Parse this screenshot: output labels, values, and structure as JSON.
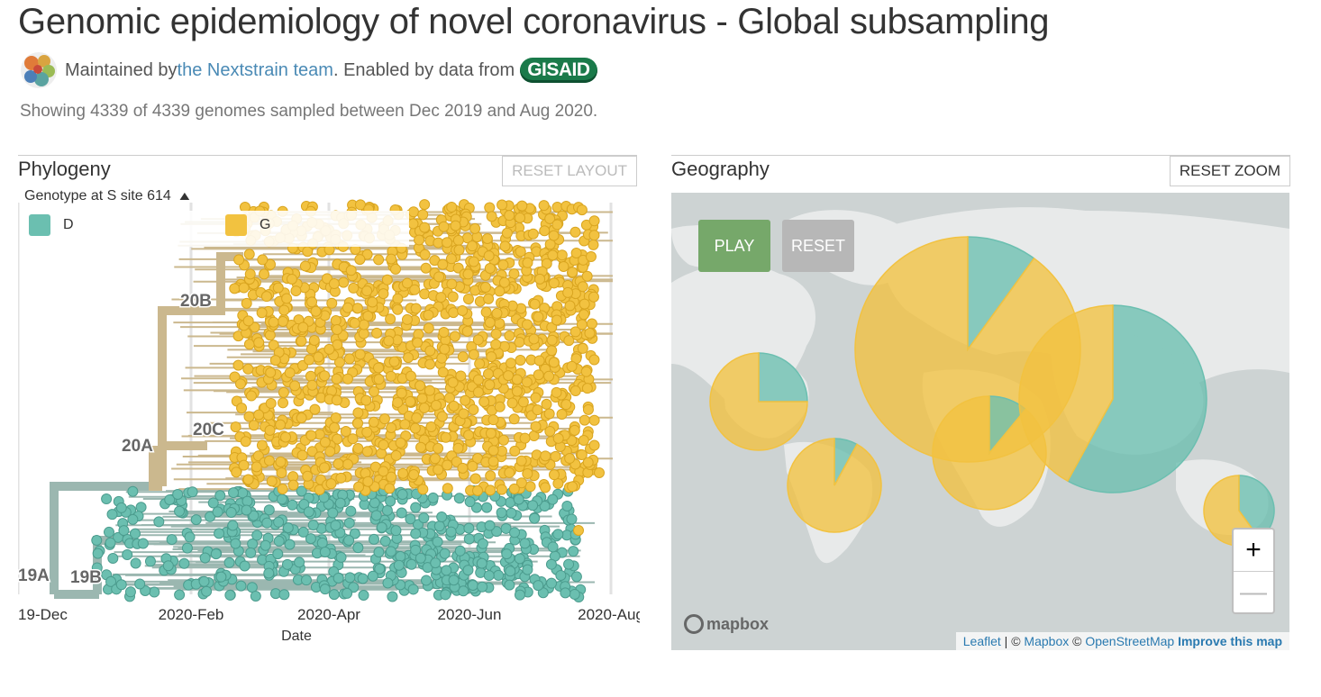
{
  "header": {
    "title": "Genomic epidemiology of novel coronavirus - Global subsampling",
    "maintained_prefix": "Maintained by ",
    "maintainer_link": "the Nextstrain team",
    "enabled_text": ". Enabled by data from ",
    "gisaid_logo": "GISAID",
    "summary": "Showing 4339 of 4339 genomes sampled between Dec 2019 and Aug 2020."
  },
  "phylogeny": {
    "title": "Phylogeny",
    "reset_button": "RESET LAYOUT",
    "legend_title": "Genotype at S site 614",
    "legend_toggle_icon": "chevron-up-icon",
    "legend": [
      {
        "label": "D",
        "color": "#6bbfb0"
      },
      {
        "label": "G",
        "color": "#f2c240"
      }
    ],
    "clade_labels": [
      "20B",
      "20C",
      "20A",
      "19A",
      "19B"
    ],
    "x_ticks": [
      "2019-Dec",
      "2020-Feb",
      "2020-Apr",
      "2020-Jun",
      "2020-Aug"
    ],
    "x_axis_label": "Date",
    "colors": {
      "D": "#6bbfb0",
      "G": "#f2c240",
      "branch_D": "#9bb7b0",
      "branch_G": "#cbb88e"
    }
  },
  "geography": {
    "title": "Geography",
    "reset_zoom_button": "RESET ZOOM",
    "play_button": "PLAY",
    "reset_button": "RESET",
    "play_color": "#76a86a",
    "reset_color": "#b7b7b7",
    "zoom_in": "+",
    "zoom_out": "—",
    "mapbox_logo": "mapbox",
    "attribution": {
      "leaflet": "Leaflet",
      "sep1": " | © ",
      "mapbox": "Mapbox",
      "sep2": " © ",
      "osm": "OpenStreetMap",
      "improve": "Improve this map"
    },
    "pies": [
      {
        "region": "North America",
        "D_fraction": 0.25
      },
      {
        "region": "South America",
        "D_fraction": 0.08
      },
      {
        "region": "Europe",
        "D_fraction": 0.1
      },
      {
        "region": "Africa",
        "D_fraction": 0.11
      },
      {
        "region": "Asia",
        "D_fraction": 0.58
      },
      {
        "region": "Oceania",
        "D_fraction": 0.4
      }
    ]
  }
}
